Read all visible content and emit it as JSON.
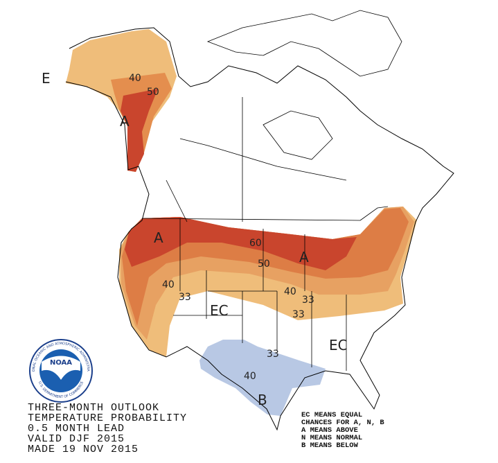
{
  "map": {
    "labels": [
      "E",
      "40",
      "50",
      "A",
      "A",
      "40",
      "33",
      "EC",
      "60",
      "50",
      "A",
      "40",
      "33",
      "33",
      "40",
      "B",
      "EC",
      "33"
    ],
    "logo": {
      "name": "NOAA",
      "ring_top": "NATIONAL OCEANIC AND ATMOSPHERIC ADMINISTRATION",
      "ring_bottom": "U.S. DEPARTMENT OF COMMERCE"
    },
    "title_lines": [
      "THREE-MONTH OUTLOOK",
      "TEMPERATURE PROBABILITY",
      "0.5 MONTH LEAD",
      "VALID DJF 2015",
      "MADE 19 NOV 2015"
    ],
    "legend_lines": [
      "EC MEANS EQUAL",
      "CHANCES FOR A, N, B",
      "A MEANS ABOVE",
      "N MEANS NORMAL",
      "B MEANS BELOW"
    ]
  }
}
